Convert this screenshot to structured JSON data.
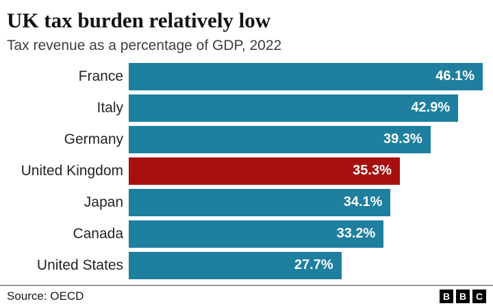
{
  "header": {
    "title": "UK tax burden relatively low",
    "subtitle": "Tax revenue as a percentage of GDP, 2022"
  },
  "chart_data": {
    "type": "bar",
    "orientation": "horizontal",
    "title": "UK tax burden relatively low",
    "subtitle": "Tax revenue as a percentage of GDP, 2022",
    "categories": [
      "France",
      "Italy",
      "Germany",
      "United Kingdom",
      "Japan",
      "Canada",
      "United States"
    ],
    "values": [
      46.1,
      42.9,
      39.3,
      35.3,
      34.1,
      33.2,
      27.7
    ],
    "value_labels": [
      "46.1%",
      "42.9%",
      "39.3%",
      "35.3%",
      "34.1%",
      "33.2%",
      "27.7%"
    ],
    "highlight_category": "United Kingdom",
    "bar_color": "#1E7F9F",
    "highlight_color": "#A81010",
    "value_label_color": "#FFFFFF",
    "value_label_position": "inside-end",
    "xlim": [
      0,
      46.1
    ],
    "grid": false,
    "legend": false
  },
  "footer": {
    "source": "Source: OECD",
    "logo_blocks": [
      "B",
      "B",
      "C"
    ]
  }
}
